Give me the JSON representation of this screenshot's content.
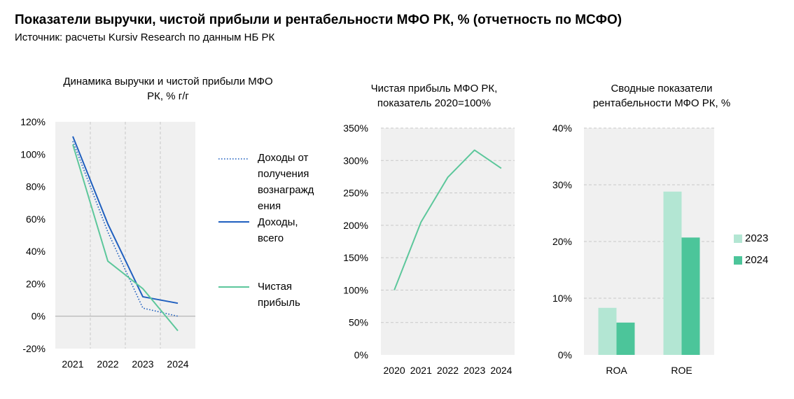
{
  "header": {
    "title": "Показатели выручки, чистой прибыли и рентабельности МФО РК, % (отчетность по МСФО)",
    "source": "Источник: расчеты Kursiv Research по данным НБ РК"
  },
  "colors": {
    "plot_bg": "#f0f0f0",
    "dark_blue": "#1f5fbf",
    "teal": "#5cc79b",
    "light_teal": "#b3e6d3",
    "green": "#4cc59a"
  },
  "chart_data": [
    {
      "type": "line",
      "title": "Динамика выручки и чистой прибыли МФО РК, % г/г",
      "title_lines": [
        "Динамика выручки и чистой прибыли МФО",
        "РК, % г/г"
      ],
      "categories": [
        "2021",
        "2022",
        "2023",
        "2024"
      ],
      "ylim": [
        -20,
        120
      ],
      "yticks": [
        "-20%",
        "0%",
        "20%",
        "40%",
        "60%",
        "80%",
        "100%",
        "120%"
      ],
      "series": [
        {
          "name": "Доходы от получения вознаграждения",
          "legend_lines": [
            "Доходы от",
            "получения",
            "вознагражд",
            "ения"
          ],
          "values": [
            108,
            52,
            5,
            0
          ],
          "style": "dotted"
        },
        {
          "name": "Доходы, всего",
          "legend_lines": [
            "Доходы,",
            "всего"
          ],
          "values": [
            111,
            57,
            12,
            8
          ],
          "style": "solid-dark"
        },
        {
          "name": "Чистая прибыль",
          "legend_lines": [
            "Чистая",
            "прибыль"
          ],
          "values": [
            106,
            34,
            17,
            -9
          ],
          "style": "solid-teal"
        }
      ],
      "grid": "vertical",
      "legend": "right"
    },
    {
      "type": "line",
      "title": "Чистая прибыль МФО РК, показатель 2020=100%",
      "title_lines": [
        "Чистая прибыль МФО РК,",
        "показатель 2020=100%"
      ],
      "categories": [
        "2020",
        "2021",
        "2022",
        "2023",
        "2024"
      ],
      "ylim": [
        0,
        350
      ],
      "yticks": [
        "0%",
        "50%",
        "100%",
        "150%",
        "200%",
        "250%",
        "300%",
        "350%"
      ],
      "series": [
        {
          "values": [
            100,
            205,
            274,
            316,
            288
          ]
        }
      ],
      "grid": "horizontal"
    },
    {
      "type": "bar",
      "title": "Сводные показатели рентабельности МФО РК, %",
      "title_lines": [
        "Сводные показатели",
        "рентабельности МФО РК, %"
      ],
      "categories": [
        "ROA",
        "ROE"
      ],
      "ylim": [
        0,
        40
      ],
      "yticks": [
        "0%",
        "10%",
        "20%",
        "30%",
        "40%"
      ],
      "series": [
        {
          "name": "2023",
          "values": [
            8.3,
            28.8
          ]
        },
        {
          "name": "2024",
          "values": [
            5.7,
            20.7
          ]
        }
      ],
      "grid": "horizontal",
      "legend": "right"
    }
  ]
}
